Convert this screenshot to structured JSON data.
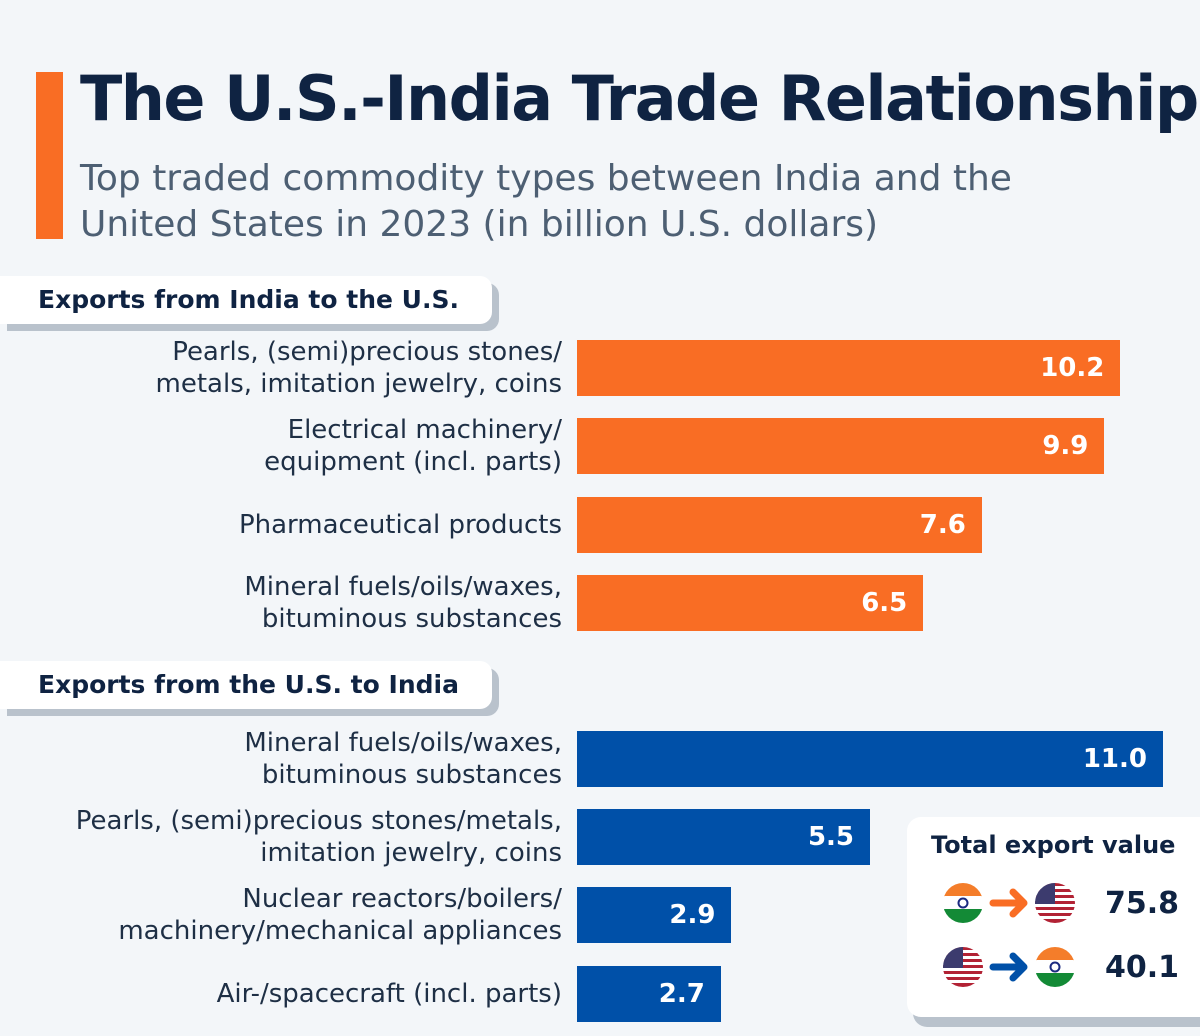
{
  "title": "The U.S.-India Trade Relationship",
  "subtitle": "Top traded commodity types between India and the United States in 2023 (in billion U.S. dollars)",
  "chart_data": [
    {
      "type": "bar",
      "title": "Exports from India to the U.S.",
      "color": "#f96d24",
      "categories": [
        "Pearls, (semi)precious stones/\nmetals, imitation jewelry, coins",
        "Electrical machinery/\nequipment (incl. parts)",
        "Pharmaceutical products",
        "Mineral fuels/oils/waxes,\nbituminous substances"
      ],
      "values": [
        10.2,
        9.9,
        7.6,
        6.5
      ],
      "labels": [
        "10.2",
        "9.9",
        "7.6",
        "6.5"
      ],
      "xlim": [
        0,
        11
      ]
    },
    {
      "type": "bar",
      "title": "Exports from the U.S. to India",
      "color": "#0050a8",
      "categories": [
        "Mineral fuels/oils/waxes,\nbituminous substances",
        "Pearls, (semi)precious stones/metals,\nimitation jewelry, coins",
        "Nuclear reactors/boilers/\nmachinery/mechanical appliances",
        "Air-/spacecraft (incl. parts)"
      ],
      "values": [
        11.0,
        5.5,
        2.9,
        2.7
      ],
      "labels": [
        "11.0",
        "5.5",
        "2.9",
        "2.7"
      ],
      "xlim": [
        0,
        11
      ]
    }
  ],
  "totals": {
    "title": "Total export value",
    "india_to_us": "75.8",
    "us_to_india": "40.1",
    "india_to_us_color": "#f96d24",
    "us_to_india_color": "#0050a8"
  }
}
